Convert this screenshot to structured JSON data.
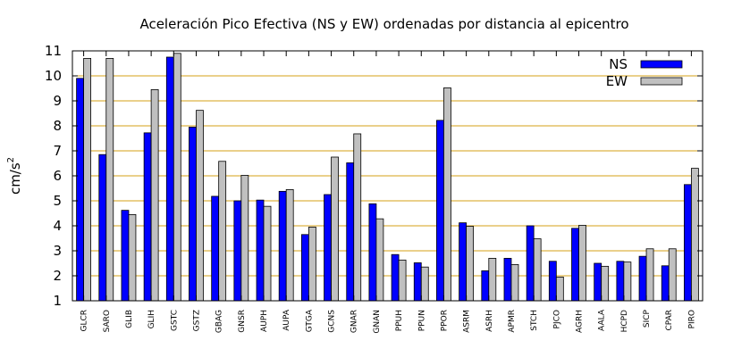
{
  "chart_data": {
    "type": "bar",
    "title": "Aceleración Pico Efectiva (NS y EW) ordenadas por distancia al epicentro",
    "xlabel": "",
    "ylabel": "cm/s",
    "ylabel_superscript": "2",
    "ylim": [
      1,
      11
    ],
    "yticks": [
      "1",
      "2",
      "3",
      "4",
      "5",
      "6",
      "7",
      "8",
      "9",
      "10",
      "11"
    ],
    "grid": "horizontal",
    "grid_color": "#d4a017",
    "legend_position": "top-right",
    "categories": [
      "GLCR",
      "SARO",
      "GLIB",
      "GLIH",
      "GSTC",
      "GSTZ",
      "GBAG",
      "GNSR",
      "AUPH",
      "AUPA",
      "GTGA",
      "GCNS",
      "GNAR",
      "GNAN",
      "PPUH",
      "PPUN",
      "PPOR",
      "ASRM",
      "ASRH",
      "APMR",
      "STCH",
      "PJCO",
      "AGRH",
      "AALA",
      "HCPD",
      "SICP",
      "CPAR",
      "PIRO"
    ],
    "series": [
      {
        "name": "NS",
        "color": "#0000ff",
        "values": [
          9.9,
          6.85,
          4.62,
          7.72,
          10.75,
          7.95,
          5.18,
          5.0,
          5.03,
          5.38,
          3.65,
          5.25,
          6.52,
          4.88,
          2.85,
          2.52,
          8.22,
          4.12,
          2.2,
          2.7,
          4.0,
          2.58,
          3.9,
          2.5,
          2.58,
          2.78,
          2.4,
          5.65
        ]
      },
      {
        "name": "EW",
        "color": "#c0c0c0",
        "values": [
          10.7,
          10.7,
          4.45,
          9.45,
          10.9,
          8.62,
          6.58,
          6.02,
          4.78,
          5.45,
          3.95,
          6.75,
          7.68,
          4.28,
          2.63,
          2.35,
          9.52,
          3.98,
          2.7,
          2.45,
          3.48,
          1.95,
          4.02,
          2.38,
          2.55,
          3.08,
          3.08,
          6.3
        ]
      }
    ]
  }
}
